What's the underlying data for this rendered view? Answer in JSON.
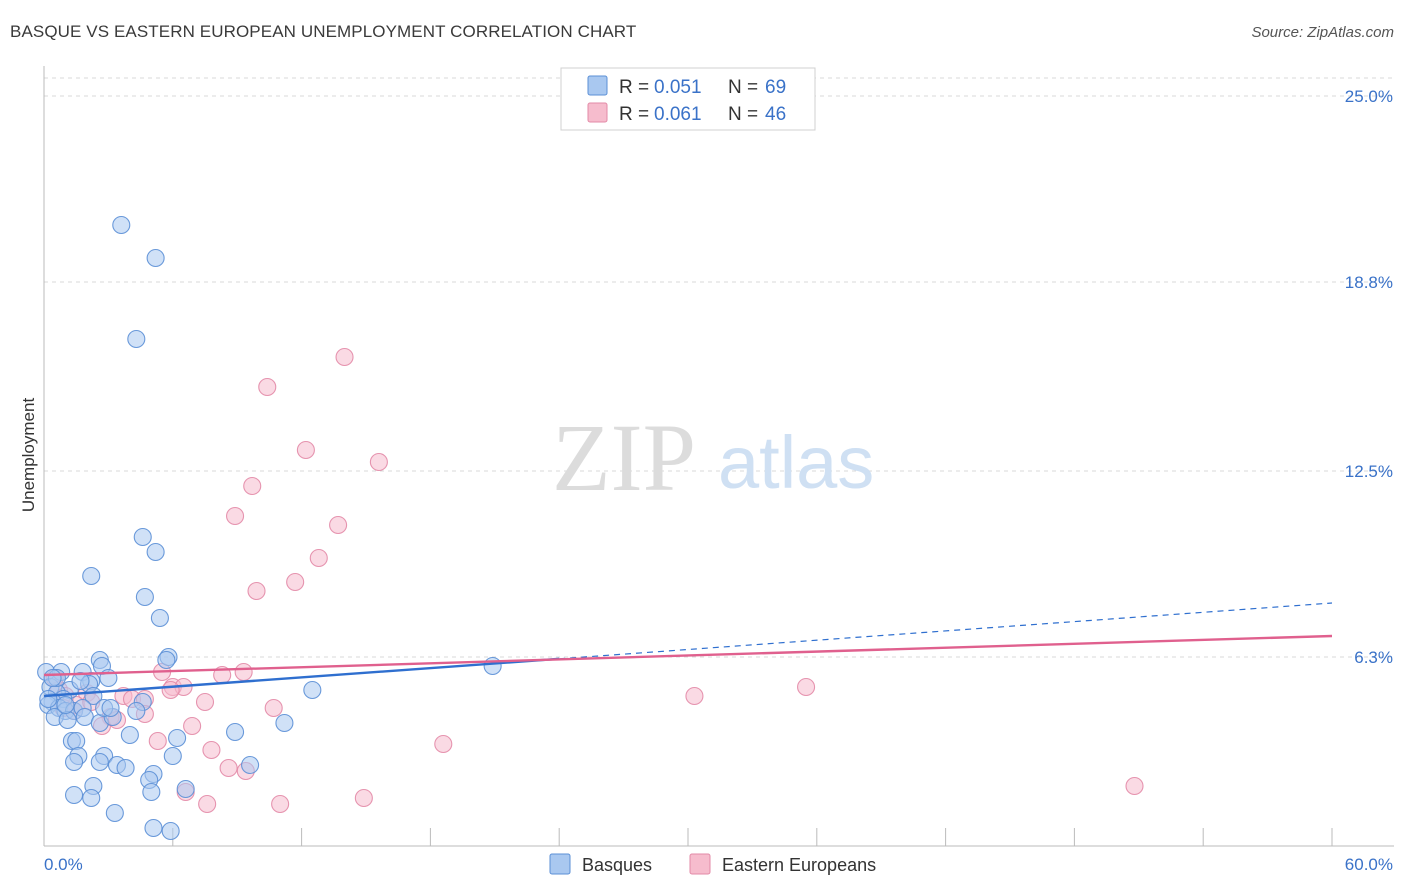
{
  "title": "BASQUE VS EASTERN EUROPEAN UNEMPLOYMENT CORRELATION CHART",
  "source": "Source: ZipAtlas.com",
  "watermark": {
    "zip": "ZIP",
    "atlas": "atlas"
  },
  "colors": {
    "basques_fill": "#a9c8f0",
    "basques_stroke": "#5b8fd6",
    "basques_line": "#2f6fcf",
    "eastern_fill": "#f6bccd",
    "eastern_stroke": "#e38aa7",
    "eastern_line": "#e0608e",
    "axis_label": "#3a72c8",
    "grid": "#d8d8d8"
  },
  "legend": {
    "rows": [
      {
        "r_label": "R =",
        "r_value": "0.051",
        "n_label": "N =",
        "n_value": "69"
      },
      {
        "r_label": "R =",
        "r_value": "0.061",
        "n_label": "N =",
        "n_value": "46"
      }
    ]
  },
  "chart_data": {
    "type": "scatter",
    "title": "BASQUE VS EASTERN EUROPEAN UNEMPLOYMENT CORRELATION CHART",
    "xlabel": "",
    "ylabel": "Unemployment",
    "xlim": [
      0,
      60
    ],
    "ylim": [
      0,
      25
    ],
    "x_tick_labels": [
      "0.0%",
      "60.0%"
    ],
    "y_ticks": [
      6.3,
      12.5,
      18.8,
      25.0
    ],
    "y_tick_labels": [
      "6.3%",
      "12.5%",
      "18.8%",
      "25.0%"
    ],
    "grid": true,
    "series": [
      {
        "name": "Basques",
        "r": 0.051,
        "n": 69,
        "trend": {
          "x0": 0,
          "y0": 5.0,
          "x1": 60,
          "y1": 8.1,
          "solid_until": 24
        },
        "points": [
          [
            3.6,
            20.7
          ],
          [
            5.2,
            19.6
          ],
          [
            4.3,
            16.9
          ],
          [
            4.6,
            10.3
          ],
          [
            5.2,
            9.8
          ],
          [
            2.2,
            9.0
          ],
          [
            4.7,
            8.3
          ],
          [
            5.4,
            7.6
          ],
          [
            5.8,
            6.3
          ],
          [
            5.7,
            6.2
          ],
          [
            2.6,
            6.2
          ],
          [
            2.7,
            6.0
          ],
          [
            0.1,
            5.8
          ],
          [
            0.8,
            5.8
          ],
          [
            1.8,
            5.8
          ],
          [
            3.0,
            5.6
          ],
          [
            2.2,
            5.5
          ],
          [
            2.1,
            5.4
          ],
          [
            0.3,
            5.3
          ],
          [
            1.2,
            5.2
          ],
          [
            0.6,
            5.1
          ],
          [
            2.3,
            5.0
          ],
          [
            0.9,
            4.9
          ],
          [
            0.4,
            4.8
          ],
          [
            4.6,
            4.8
          ],
          [
            0.2,
            4.7
          ],
          [
            0.7,
            4.6
          ],
          [
            1.0,
            4.5
          ],
          [
            1.4,
            4.5
          ],
          [
            1.8,
            4.6
          ],
          [
            4.3,
            4.5
          ],
          [
            0.5,
            4.3
          ],
          [
            1.1,
            4.2
          ],
          [
            1.9,
            4.3
          ],
          [
            2.6,
            4.1
          ],
          [
            3.2,
            4.3
          ],
          [
            11.2,
            4.1
          ],
          [
            8.9,
            3.8
          ],
          [
            4.0,
            3.7
          ],
          [
            1.3,
            3.5
          ],
          [
            1.5,
            3.5
          ],
          [
            6.2,
            3.6
          ],
          [
            1.6,
            3.0
          ],
          [
            2.8,
            3.0
          ],
          [
            6.0,
            3.0
          ],
          [
            1.4,
            2.8
          ],
          [
            2.6,
            2.8
          ],
          [
            3.4,
            2.7
          ],
          [
            3.8,
            2.6
          ],
          [
            9.6,
            2.7
          ],
          [
            5.1,
            2.4
          ],
          [
            4.9,
            2.2
          ],
          [
            2.3,
            2.0
          ],
          [
            6.6,
            1.9
          ],
          [
            5.0,
            1.8
          ],
          [
            1.4,
            1.7
          ],
          [
            2.2,
            1.6
          ],
          [
            3.3,
            1.1
          ],
          [
            5.1,
            0.6
          ],
          [
            5.9,
            0.5
          ],
          [
            12.5,
            5.2
          ],
          [
            20.9,
            6.0
          ],
          [
            0.2,
            4.9
          ],
          [
            0.6,
            5.6
          ],
          [
            1.0,
            4.7
          ],
          [
            2.8,
            4.6
          ],
          [
            0.4,
            5.6
          ],
          [
            1.7,
            5.5
          ],
          [
            3.1,
            4.6
          ]
        ]
      },
      {
        "name": "Eastern Europeans",
        "r": 0.061,
        "n": 46,
        "trend": {
          "x0": 0,
          "y0": 5.7,
          "x1": 60,
          "y1": 7.0,
          "solid_until": 60
        },
        "points": [
          [
            14.0,
            16.3
          ],
          [
            10.4,
            15.3
          ],
          [
            12.2,
            13.2
          ],
          [
            15.6,
            12.8
          ],
          [
            9.7,
            12.0
          ],
          [
            8.9,
            11.0
          ],
          [
            13.7,
            10.7
          ],
          [
            12.8,
            9.6
          ],
          [
            11.7,
            8.8
          ],
          [
            9.9,
            8.5
          ],
          [
            5.5,
            5.8
          ],
          [
            9.3,
            5.8
          ],
          [
            6.0,
            5.3
          ],
          [
            8.3,
            5.7
          ],
          [
            2.0,
            5.1
          ],
          [
            0.7,
            5.2
          ],
          [
            3.7,
            5.0
          ],
          [
            4.1,
            4.9
          ],
          [
            4.7,
            4.9
          ],
          [
            7.5,
            4.8
          ],
          [
            10.7,
            4.6
          ],
          [
            1.4,
            4.5
          ],
          [
            3.1,
            4.3
          ],
          [
            4.7,
            4.4
          ],
          [
            6.5,
            5.3
          ],
          [
            2.7,
            4.0
          ],
          [
            6.9,
            4.0
          ],
          [
            5.3,
            3.5
          ],
          [
            7.8,
            3.2
          ],
          [
            18.6,
            3.4
          ],
          [
            8.6,
            2.6
          ],
          [
            9.4,
            2.5
          ],
          [
            6.6,
            1.8
          ],
          [
            7.6,
            1.4
          ],
          [
            11.0,
            1.4
          ],
          [
            14.9,
            1.6
          ],
          [
            30.3,
            5.0
          ],
          [
            35.5,
            5.3
          ],
          [
            50.8,
            2.0
          ],
          [
            0.5,
            5.6
          ],
          [
            1.0,
            5.0
          ],
          [
            1.5,
            4.7
          ],
          [
            2.2,
            4.8
          ],
          [
            3.4,
            4.2
          ],
          [
            5.9,
            5.2
          ],
          [
            0.9,
            4.6
          ]
        ]
      }
    ]
  },
  "bottom_legend": [
    {
      "label": "Basques"
    },
    {
      "label": "Eastern Europeans"
    }
  ]
}
